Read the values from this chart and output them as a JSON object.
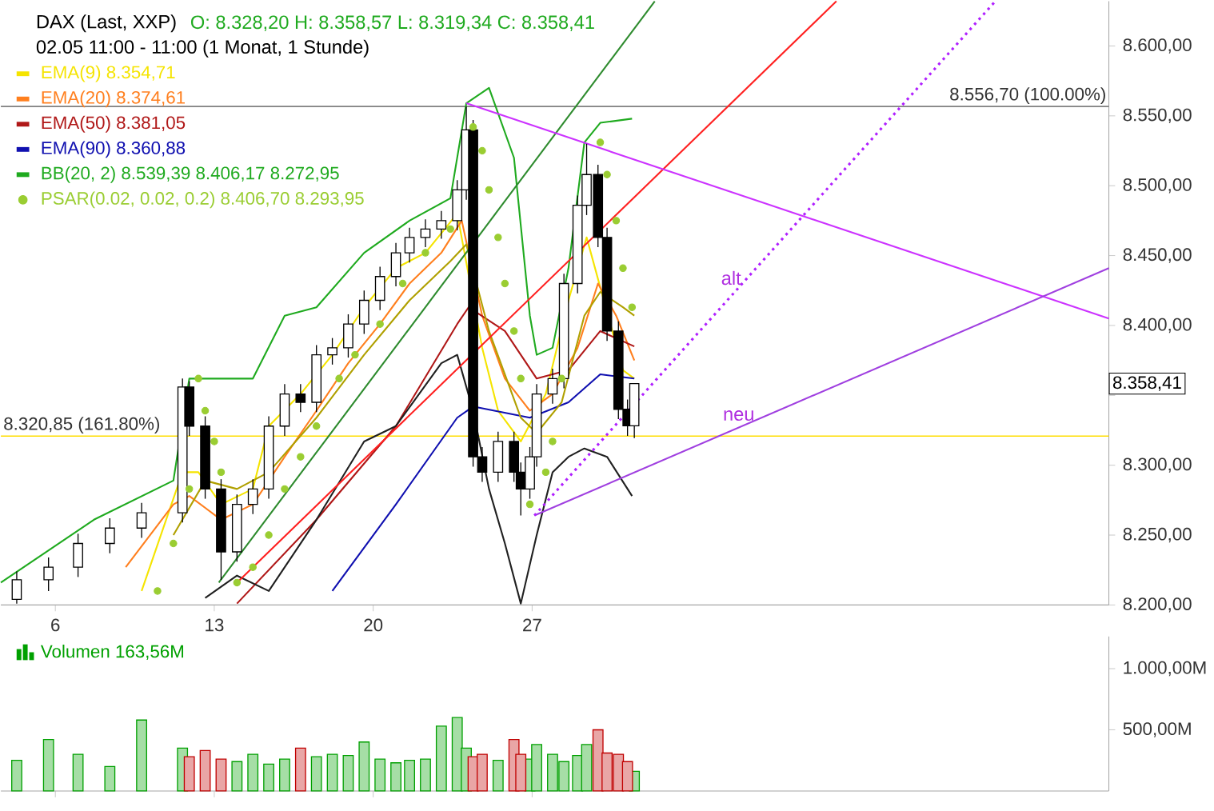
{
  "chart_data": [
    {
      "type": "candlestick",
      "title": "DAX (Last, XXP)",
      "subtitle": "02.05 11:00 - 11:00 (1 Monat, 1 Stunde)",
      "x": [
        4.3,
        5.7,
        7.0,
        8.4,
        9.8,
        11.6,
        11.9,
        12.6,
        13.3,
        14.0,
        14.7,
        15.4,
        16.1,
        16.8,
        17.5,
        18.2,
        18.9,
        19.6,
        20.3,
        21.0,
        21.6,
        22.3,
        23.0,
        23.7,
        24.1,
        24.4,
        24.8,
        25.5,
        26.2,
        26.5,
        26.9,
        27.2,
        27.9,
        28.4,
        29.0,
        29.4,
        29.9,
        30.3,
        30.8,
        31.2,
        31.5
      ],
      "ohlc": [
        [
          8204,
          8224,
          8201,
          8218
        ],
        [
          8218,
          8234,
          8210,
          8227
        ],
        [
          8227,
          8251,
          8220,
          8244
        ],
        [
          8244,
          8262,
          8237,
          8255
        ],
        [
          8255,
          8273,
          8248,
          8266
        ],
        [
          8266,
          8362,
          8259,
          8356
        ],
        [
          8356,
          8360,
          8321,
          8328
        ],
        [
          8328,
          8335,
          8276,
          8283
        ],
        [
          8283,
          8290,
          8218,
          8238
        ],
        [
          8238,
          8279,
          8231,
          8272
        ],
        [
          8272,
          8290,
          8265,
          8283
        ],
        [
          8283,
          8335,
          8276,
          8328
        ],
        [
          8328,
          8358,
          8321,
          8351
        ],
        [
          8351,
          8358,
          8338,
          8345
        ],
        [
          8345,
          8386,
          8338,
          8379
        ],
        [
          8379,
          8391,
          8372,
          8384
        ],
        [
          8384,
          8408,
          8377,
          8401
        ],
        [
          8401,
          8425,
          8394,
          8418
        ],
        [
          8418,
          8442,
          8411,
          8435
        ],
        [
          8435,
          8459,
          8428,
          8452
        ],
        [
          8452,
          8470,
          8445,
          8463
        ],
        [
          8463,
          8476,
          8456,
          8469
        ],
        [
          8469,
          8482,
          8462,
          8475
        ],
        [
          8475,
          8504,
          8468,
          8497
        ],
        [
          8497,
          8556.7,
          8490,
          8540
        ],
        [
          8540,
          8547,
          8299,
          8306
        ],
        [
          8306,
          8313,
          8288,
          8295
        ],
        [
          8295,
          8324,
          8288,
          8317
        ],
        [
          8317,
          8324,
          8288,
          8295
        ],
        [
          8295,
          8302,
          8264,
          8283
        ],
        [
          8283,
          8313,
          8276,
          8306
        ],
        [
          8306,
          8358,
          8299,
          8351
        ],
        [
          8351,
          8369,
          8344,
          8362
        ],
        [
          8362,
          8437,
          8355,
          8430
        ],
        [
          8430,
          8493,
          8423,
          8486
        ],
        [
          8486,
          8530,
          8479,
          8508
        ],
        [
          8508,
          8515,
          8456,
          8463
        ],
        [
          8463,
          8470,
          8389,
          8396
        ],
        [
          8396,
          8403,
          8333,
          8340
        ],
        [
          8340,
          8347,
          8321,
          8328.2
        ],
        [
          8328.2,
          8358.57,
          8319.34,
          8358.41
        ]
      ],
      "series": [
        {
          "name": "EMA(9)  8.354,71",
          "type": "line",
          "color": "#f5e400",
          "x": [
            9.8,
            11.6,
            12.3,
            13.3,
            14.7,
            15.4,
            16.8,
            18.2,
            19.6,
            21.0,
            22.3,
            23.7,
            24.8,
            25.5,
            26.5,
            27.6,
            28.6,
            29.4,
            30.3,
            31.0,
            31.5
          ],
          "values": [
            8210,
            8295,
            8295,
            8272,
            8283,
            8328,
            8351,
            8379,
            8413,
            8441,
            8452,
            8480,
            8384,
            8339,
            8317,
            8351,
            8418,
            8463,
            null,
            8368,
            8362
          ]
        },
        {
          "name": "EMA(20)  8.374,61",
          "type": "line",
          "color": "#ff7f1e",
          "x": [
            9.1,
            11.2,
            11.9,
            13.3,
            14.7,
            16.1,
            17.5,
            18.9,
            20.3,
            21.6,
            23.0,
            23.9,
            24.8,
            25.8,
            26.9,
            27.9,
            29.0,
            29.9,
            30.7,
            31.5
          ],
          "values": [
            8227,
            8272,
            8278,
            8261,
            8272,
            8306,
            8339,
            8373,
            8401,
            8430,
            8452,
            8475,
            8407,
            8362,
            8339,
            8351,
            8384,
            8430,
            8407,
            8375
          ]
        },
        {
          "name": "EMA(50)  8.381,05",
          "type": "line",
          "color": "#b01818",
          "x": [
            14.0,
            17.5,
            21.0,
            23.7,
            24.2,
            25.8,
            27.2,
            28.6,
            30.0,
            31.5
          ],
          "values": [
            8201,
            8261,
            8328,
            8401,
            8413,
            8396,
            8362,
            8368,
            8396,
            8385
          ]
        },
        {
          "name": "EMA(90)  8.360,88",
          "type": "line",
          "color": "#1010b0",
          "x": [
            18.2,
            21.0,
            23.7,
            24.4,
            26.9,
            28.6,
            30.0,
            31.5
          ],
          "values": [
            8210,
            8272,
            8334,
            8342,
            8334,
            8345,
            8365,
            8362
          ]
        },
        {
          "name": "BB(20, 2)  8.539,39  8.406,17  8.272,95",
          "type": "line",
          "color": "#1faa1f",
          "x": [
            3.6,
            7.7,
            11.2,
            11.9,
            14.7,
            16.1,
            17.5,
            19.6,
            21.6,
            23.4,
            24.1,
            25.1,
            26.2,
            26.9,
            27.2,
            27.9,
            28.6,
            29.3,
            30.0,
            31.4
          ],
          "values": [
            8216,
            8261,
            8289,
            8362,
            8362,
            8407,
            8413,
            8452,
            8475,
            8491,
            8559,
            8570,
            8520,
            8407,
            8379,
            8384,
            8441,
            8531,
            8545,
            8548
          ]
        },
        {
          "type": "line",
          "color": "#b0a000",
          "x": [
            11.2,
            12.6,
            14.0,
            15.4,
            17.5,
            19.6,
            21.6,
            23.4,
            24.1,
            25.1,
            26.5,
            27.2,
            28.3,
            29.3,
            30.0,
            31.0,
            31.5
          ],
          "values": [
            8250,
            8289,
            8283,
            8295,
            8334,
            8379,
            8418,
            8446,
            8458,
            8396,
            8334,
            8323,
            8345,
            8407,
            8424,
            8413,
            8407
          ]
        },
        {
          "type": "line",
          "color": "#202020",
          "x": [
            12.6,
            14.0,
            15.4,
            17.5,
            19.6,
            21.0,
            23.0,
            23.7,
            24.4,
            25.1,
            25.8,
            26.5,
            27.2,
            27.9,
            28.6,
            29.3,
            30.3,
            31.4
          ],
          "values": [
            8205,
            8221,
            8210,
            8261,
            8317,
            8328,
            8373,
            8379,
            8339,
            8283,
            8244,
            8201,
            8250,
            8295,
            8306,
            8312,
            8306,
            8278
          ]
        },
        {
          "name": "PSAR(0.02, 0.02, 0.2)  8.406,70  8.293,95",
          "type": "scatter",
          "marker": "circle",
          "color": "#9acd32",
          "x": [
            10.5,
            11.2,
            11.9,
            12.3,
            12.6,
            13.0,
            13.3,
            14.0,
            14.7,
            15.4,
            16.1,
            16.8,
            17.5,
            18.5,
            19.2,
            20.3,
            21.3,
            22.3,
            23.4,
            24.4,
            24.8,
            25.1,
            25.5,
            25.8,
            26.2,
            26.5,
            26.9,
            27.6,
            27.9,
            28.3,
            30.0,
            30.3,
            30.7,
            31.0,
            31.4
          ],
          "values": [
            8210,
            8244,
            8283,
            8362,
            8339,
            8317,
            8295,
            8216,
            8227,
            8250,
            8283,
            8306,
            8328,
            8362,
            8379,
            8401,
            8430,
            8452,
            8469,
            8542,
            8525,
            8497,
            8463,
            8430,
            8396,
            8362,
            8272,
            8295,
            8317,
            8362,
            8531,
            8508,
            8475,
            8441,
            8413
          ]
        },
        {
          "type": "line",
          "color": "#2e8b2e",
          "x": [
            13.2,
            32.4
          ],
          "values": [
            8216,
            8632
          ]
        },
        {
          "type": "line",
          "color": "#ff2020",
          "x": [
            14.0,
            40.4
          ],
          "values": [
            8216,
            8632
          ]
        },
        {
          "type": "line",
          "color": "#cc33ff",
          "x": [
            24.1,
            52.4
          ],
          "values": [
            8559,
            8405
          ]
        },
        {
          "type": "line",
          "color": "#a040e0",
          "x": [
            27.1,
            52.4
          ],
          "values": [
            8264,
            8441
          ]
        },
        {
          "type": "line",
          "color": "#b020ff",
          "line_style": "dotted",
          "x": [
            27.1,
            47.4
          ],
          "values": [
            8264,
            8632
          ]
        }
      ],
      "xlim": [
        3.6,
        52.4
      ],
      "ylim": [
        8200,
        8632
      ],
      "xticks": [
        6,
        13,
        20,
        27
      ],
      "yticks": [
        {
          "value": 8200,
          "label": "8.200,00"
        },
        {
          "value": 8250,
          "label": "8.250,00"
        },
        {
          "value": 8300,
          "label": "8.300,00"
        },
        {
          "value": 8350,
          "label": null
        },
        {
          "value": 8400,
          "label": "8.400,00"
        },
        {
          "value": 8450,
          "label": "8.450,00"
        },
        {
          "value": 8500,
          "label": "8.500,00"
        },
        {
          "value": 8550,
          "label": "8.550,00"
        },
        {
          "value": 8600,
          "label": "8.600,00"
        }
      ],
      "ref_lines": [
        {
          "axis": "y",
          "value": 8556.7,
          "label": "8.556,70 (100.00%)",
          "color": "#808080"
        },
        {
          "axis": "y",
          "value": 8320.85,
          "label": "8.320,85 (161.80%)",
          "color": "#ffdd00"
        }
      ],
      "annotations": [
        "O: 8.328,20  H: 8.358,57  L: 8.319,34  C: 8.358,41",
        {
          "text": "alt",
          "x": 36.5,
          "y": 8434
        },
        {
          "text": "neu",
          "x": 36.1,
          "y": 8327
        },
        "8.358,41"
      ],
      "legend": "top left"
    },
    {
      "type": "bar",
      "x": [
        4.3,
        5.7,
        7.0,
        8.4,
        9.8,
        11.6,
        11.9,
        12.6,
        13.3,
        14.0,
        14.7,
        15.4,
        16.1,
        16.8,
        17.5,
        18.2,
        18.9,
        19.6,
        20.3,
        21.0,
        21.6,
        22.3,
        23.0,
        23.7,
        24.1,
        24.4,
        24.8,
        25.5,
        26.2,
        26.5,
        26.9,
        27.2,
        27.9,
        28.4,
        29.0,
        29.4,
        29.9,
        30.3,
        30.8,
        31.2,
        31.5
      ],
      "series": [
        {
          "name": "Volumen  163,56M",
          "color": "#00a000",
          "values": [
            250,
            420,
            300,
            200,
            580,
            350,
            null,
            null,
            null,
            240,
            300,
            220,
            260,
            null,
            280,
            300,
            290,
            400,
            260,
            230,
            250,
            260,
            530,
            600,
            350,
            null,
            null,
            250,
            null,
            null,
            260,
            380,
            300,
            240,
            290,
            380,
            null,
            null,
            null,
            null,
            160
          ]
        },
        {
          "color": "#c00000",
          "values": [
            null,
            null,
            null,
            null,
            null,
            null,
            280,
            330,
            260,
            null,
            null,
            null,
            null,
            350,
            null,
            null,
            null,
            null,
            null,
            null,
            null,
            null,
            null,
            null,
            null,
            280,
            300,
            null,
            420,
            300,
            null,
            null,
            null,
            null,
            null,
            null,
            500,
            310,
            300,
            240,
            null
          ]
        }
      ],
      "xlim": [
        3.6,
        52.4
      ],
      "ylim": [
        0,
        1263
      ],
      "xticks": [
        {
          "value": 6,
          "label": null
        },
        {
          "value": 13,
          "label": null
        },
        {
          "value": 20,
          "label": null
        },
        {
          "value": 27,
          "label": null
        }
      ],
      "yticks": [
        {
          "value": 500,
          "label": "500,00M"
        },
        {
          "value": 1000,
          "label": "1.000,00M"
        }
      ],
      "tick_labels": "y",
      "legend": "top left"
    }
  ]
}
